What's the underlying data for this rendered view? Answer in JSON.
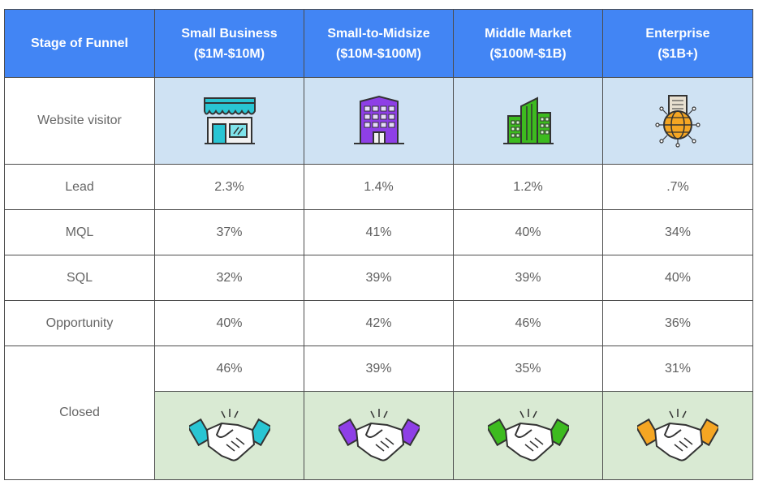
{
  "header": {
    "stage": "Stage of Funnel",
    "columns": [
      {
        "line1": "Small Business",
        "line2": "($1M-$10M)"
      },
      {
        "line1": "Small-to-Midsize",
        "line2": "($10M-$100M)"
      },
      {
        "line1": "Middle Market",
        "line2": "($100M-$1B)"
      },
      {
        "line1": "Enterprise",
        "line2": "($1B+)"
      }
    ]
  },
  "rows": [
    {
      "label": "Website visitor",
      "icons": [
        "storefront-icon",
        "office-building-icon",
        "city-buildings-icon",
        "globe-building-icon"
      ]
    },
    {
      "label": "Lead",
      "values": [
        "2.3%",
        "1.4%",
        "1.2%",
        ".7%"
      ]
    },
    {
      "label": "MQL",
      "values": [
        "37%",
        "41%",
        "40%",
        "34%"
      ]
    },
    {
      "label": "SQL",
      "values": [
        "32%",
        "39%",
        "39%",
        "40%"
      ]
    },
    {
      "label": "Opportunity",
      "values": [
        "40%",
        "42%",
        "46%",
        "36%"
      ]
    },
    {
      "label": "Closed",
      "values": [
        "46%",
        "39%",
        "35%",
        "31%"
      ],
      "icons": [
        "handshake-icon",
        "handshake-icon",
        "handshake-icon",
        "handshake-icon"
      ]
    }
  ],
  "colors": {
    "header_bg": "#4285f4",
    "icon_row_bg": "#cfe2f3",
    "closed_row_bg": "#d9ead3",
    "segment_accents": [
      "#29c5d3",
      "#8e3fe6",
      "#3dbb1f",
      "#f5a623"
    ]
  }
}
